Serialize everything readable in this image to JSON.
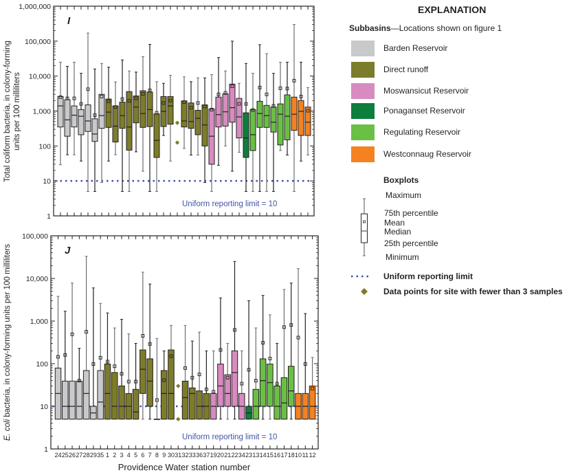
{
  "explanation": {
    "title": "EXPLANATION",
    "subbasins_heading": "Subbasins",
    "subbasins_note": "—Locations shown on figure 1",
    "subbasins": [
      {
        "name": "Barden Reservoir",
        "color": "#c8c9cb"
      },
      {
        "name": "Direct runoff",
        "color": "#7d7c2a"
      },
      {
        "name": "Moswansicut Reservoir",
        "color": "#d88bc0"
      },
      {
        "name": "Ponaganset Reservoir",
        "color": "#0e7e3c"
      },
      {
        "name": "Regulating Reservoir",
        "color": "#6abf45"
      },
      {
        "name": "Westconnaug Reservoir",
        "color": "#f58220"
      }
    ],
    "boxplots_heading": "Boxplots",
    "boxplot_labels": {
      "max": "Maximum",
      "q3": "75th percentile",
      "mean": "Mean",
      "median": "Median",
      "q1": "25th percentile",
      "min": "Minimum"
    },
    "limit_label": "Uniform reporting limit",
    "points_label": "Data points for site with fewer than 3 samples",
    "limit_color": "#3f51a6",
    "point_color": "#7d7c2a"
  },
  "chart_data": [
    {
      "type": "box",
      "panel_label": "I",
      "ylabel_lines": [
        "Total coliform bacteria, in colony-forming",
        "units per 100 milliliters"
      ],
      "yscale": "log",
      "ylim": [
        1,
        1000000
      ],
      "yticks": [
        "1",
        "10",
        "100",
        "1,000",
        "10,000",
        "100,000",
        "1,000,000"
      ],
      "reporting_limit": 10,
      "reporting_limit_text": "Uniform reporting limit = 10",
      "stations": [
        "24",
        "25",
        "26",
        "27",
        "28",
        "29",
        "35",
        "1",
        "2",
        "3",
        "4",
        "5",
        "6",
        "7",
        "8",
        "9",
        "30",
        "31",
        "32",
        "33",
        "36",
        "37",
        "19",
        "20",
        "21",
        "22",
        "34",
        "23",
        "13",
        "14",
        "15",
        "16",
        "17",
        "18",
        "10",
        "11",
        "12"
      ],
      "subbasin_index": [
        0,
        0,
        0,
        0,
        0,
        0,
        0,
        1,
        1,
        1,
        1,
        1,
        1,
        1,
        1,
        1,
        1,
        1,
        1,
        1,
        1,
        1,
        2,
        2,
        2,
        2,
        2,
        3,
        4,
        4,
        4,
        4,
        4,
        4,
        5,
        5,
        5
      ],
      "stats_order": [
        "max",
        "q3",
        "median",
        "q1",
        "min",
        "mean"
      ],
      "stats": [
        [
          25000,
          2600,
          1400,
          350,
          29,
          2500
        ],
        [
          19000,
          2100,
          560,
          190,
          56,
          2300
        ],
        [
          25000,
          1400,
          760,
          350,
          56,
          2300
        ],
        [
          12000,
          1100,
          710,
          210,
          37,
          1600
        ],
        [
          170000,
          1500,
          520,
          260,
          5,
          4200
        ],
        [
          16000,
          600,
          220,
          135,
          5,
          760
        ],
        [
          23000,
          3000,
          740,
          320,
          9,
          2600
        ],
        [
          18000,
          2200,
          930,
          340,
          37,
          1900
        ],
        [
          6800,
          1400,
          370,
          130,
          56,
          1300
        ],
        [
          29000,
          1800,
          740,
          320,
          5,
          2200
        ],
        [
          14000,
          3600,
          350,
          76,
          5,
          1950
        ],
        [
          13000,
          2700,
          1300,
          460,
          68,
          2300
        ],
        [
          36000,
          3800,
          850,
          340,
          19,
          3100
        ],
        [
          81000,
          3500,
          1100,
          360,
          5,
          3900
        ],
        [
          6900,
          830,
          145,
          47,
          5,
          890
        ],
        [
          6200,
          2600,
          980,
          360,
          200,
          1700
        ],
        [
          10500,
          2600,
          1400,
          420,
          37,
          2000
        ],
        null,
        [
          9500,
          1950,
          520,
          350,
          85,
          1800
        ],
        [
          6900,
          1700,
          500,
          320,
          55,
          1250
        ],
        [
          8900,
          1050,
          620,
          210,
          55,
          1700
        ],
        [
          8900,
          1500,
          400,
          100,
          9,
          1350
        ],
        [
          11000,
          1150,
          190,
          30,
          5,
          1100
        ],
        [
          34000,
          2500,
          790,
          350,
          28,
          3000
        ],
        [
          14000,
          3100,
          950,
          370,
          100,
          3300
        ],
        [
          100000,
          5900,
          1250,
          480,
          19,
          5100
        ],
        [
          6200,
          2300,
          680,
          170,
          66,
          1600
        ],
        [
          23000,
          890,
          170,
          47,
          5,
          1600
        ],
        [
          12000,
          1100,
          210,
          74,
          5,
          1070
        ],
        [
          79000,
          1900,
          850,
          340,
          5,
          4700
        ],
        [
          44000,
          1450,
          740,
          340,
          5,
          3000
        ],
        [
          12000,
          1300,
          480,
          250,
          5,
          1400
        ],
        [
          25000,
          1600,
          810,
          107,
          74,
          4500
        ],
        [
          25000,
          2900,
          710,
          150,
          55,
          4400
        ],
        [
          300000,
          2500,
          810,
          280,
          5,
          7400
        ],
        [
          25000,
          2000,
          980,
          200,
          37,
          2600
        ],
        [
          4700,
          1300,
          480,
          200,
          55,
          1020
        ]
      ],
      "points": {
        "31": [
          460,
          125
        ]
      }
    },
    {
      "type": "box",
      "panel_label": "J",
      "ylabel_italic": "E. coli",
      "ylabel_rest": " bacteria, in colony-forming units per 100 milliliters",
      "yscale": "log",
      "ylim": [
        1,
        100000
      ],
      "yticks": [
        "1",
        "10",
        "100",
        "1,000",
        "10,000",
        "100,000"
      ],
      "reporting_limit": 10,
      "reporting_limit_text": "Uniform reporting limit = 10",
      "xlabel": "Providence Water station number",
      "stations": [
        "24",
        "25",
        "26",
        "27",
        "28",
        "29",
        "35",
        "1",
        "2",
        "3",
        "4",
        "5",
        "6",
        "7",
        "8",
        "9",
        "30",
        "31",
        "32",
        "33",
        "36",
        "37",
        "19",
        "20",
        "21",
        "22",
        "34",
        "23",
        "13",
        "14",
        "15",
        "16",
        "17",
        "18",
        "10",
        "11",
        "12"
      ],
      "subbasin_index": [
        0,
        0,
        0,
        0,
        0,
        0,
        0,
        1,
        1,
        1,
        1,
        1,
        1,
        1,
        1,
        1,
        1,
        1,
        1,
        1,
        1,
        1,
        2,
        2,
        2,
        2,
        2,
        3,
        4,
        4,
        4,
        4,
        4,
        4,
        5,
        5,
        5
      ],
      "stats_order": [
        "max",
        "q3",
        "median",
        "q1",
        "min",
        "mean"
      ],
      "stats": [
        [
          3800,
          79,
          20,
          5,
          5,
          145
        ],
        [
          1700,
          39,
          10,
          5,
          5,
          160
        ],
        [
          7800,
          39,
          10,
          5,
          5,
          490
        ],
        [
          230,
          39,
          10,
          5,
          5,
          40
        ],
        [
          33000,
          69,
          20,
          5,
          5,
          560
        ],
        [
          6000,
          10,
          7,
          5,
          5,
          98
        ],
        [
          2600,
          69,
          12.6,
          5,
          5,
          138
        ],
        [
          1550,
          98,
          20,
          5,
          5,
          112
        ],
        [
          690,
          62,
          10,
          5,
          5,
          87
        ],
        [
          1100,
          30,
          10,
          5,
          5,
          58
        ],
        [
          500,
          20,
          10,
          5,
          5,
          38
        ],
        [
          300,
          25,
          7.4,
          5,
          5,
          38
        ],
        [
          14000,
          210,
          74,
          20,
          5,
          450
        ],
        [
          7400,
          130,
          39,
          10,
          5,
          290
        ],
        [
          390,
          5,
          5,
          5,
          5,
          14
        ],
        [
          200,
          69,
          20,
          5,
          5,
          41
        ],
        [
          790,
          210,
          20,
          5,
          5,
          150
        ],
        null,
        [
          790,
          39,
          16,
          5,
          5,
          79
        ],
        [
          340,
          27,
          20,
          5,
          5,
          47
        ],
        [
          550,
          23,
          10,
          5,
          5,
          56
        ],
        [
          200,
          20,
          10,
          5,
          5,
          25
        ],
        [
          200,
          20,
          10,
          5,
          5,
          22
        ],
        [
          3500,
          98,
          30,
          10,
          5,
          210
        ],
        [
          300,
          55,
          20,
          10,
          5,
          47
        ],
        [
          25000,
          200,
          62,
          10,
          5,
          620
        ],
        [
          200,
          20,
          10,
          5,
          5,
          34
        ],
        [
          3000,
          10,
          7,
          5,
          5,
          72
        ],
        [
          690,
          25,
          10,
          5,
          5,
          40
        ],
        [
          4000,
          130,
          40,
          10,
          5,
          310
        ],
        [
          1400,
          98,
          36,
          10,
          5,
          132
        ],
        [
          300,
          30,
          10,
          5,
          5,
          34
        ],
        [
          5500,
          47,
          12,
          5,
          5,
          720
        ],
        [
          7800,
          87,
          23,
          10,
          5,
          810
        ],
        [
          17000,
          20,
          10,
          5,
          5,
          410
        ],
        [
          1500,
          20,
          10,
          5,
          5,
          98
        ],
        [
          140,
          30,
          10,
          5,
          5,
          26
        ]
      ],
      "points": {
        "31": [
          30,
          5
        ]
      }
    }
  ]
}
